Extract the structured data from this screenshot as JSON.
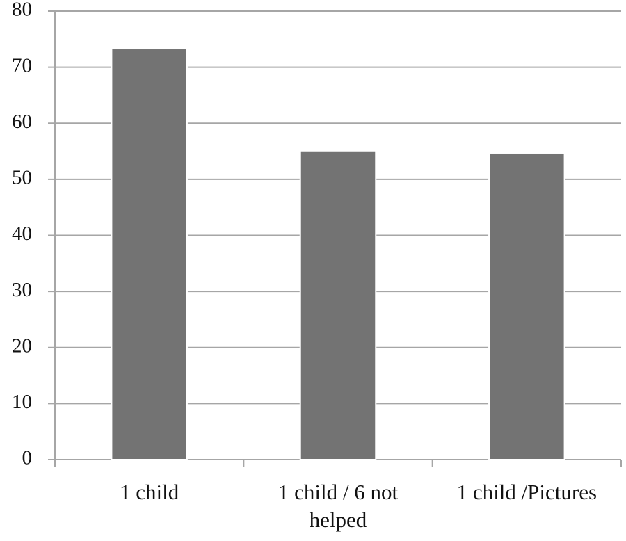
{
  "chart_data": {
    "type": "bar",
    "categories": [
      "1 child",
      "1 child / 6 not helped",
      "1 child /Pictures"
    ],
    "values": [
      73.3,
      55.1,
      54.7
    ],
    "color": "#737373",
    "ylim": [
      0,
      80
    ],
    "yticks": [
      0,
      10,
      20,
      30,
      40,
      50,
      60,
      70,
      80
    ],
    "grid": true
  }
}
